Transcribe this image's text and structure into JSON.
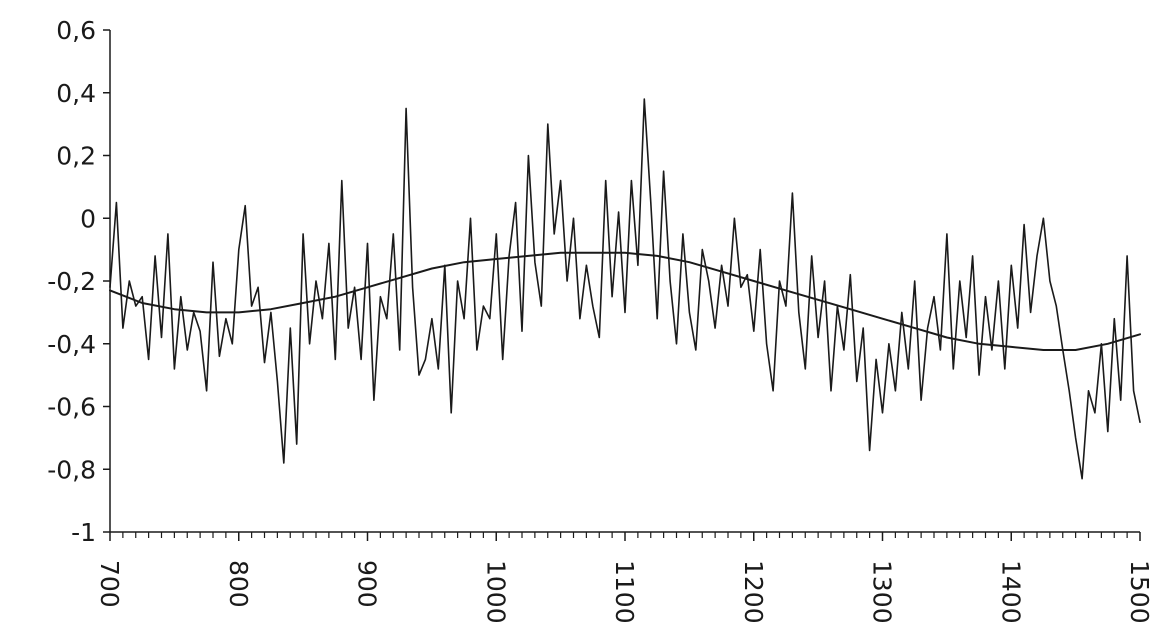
{
  "chart_data": {
    "type": "line",
    "title": "",
    "xlabel": "",
    "ylabel": "",
    "xlim": [
      700,
      1500
    ],
    "ylim": [
      -1,
      0.6
    ],
    "x_ticks": [
      700,
      800,
      900,
      1000,
      1100,
      1200,
      1300,
      1400,
      1500
    ],
    "x_tick_labels": [
      "700",
      "800",
      "900",
      "1000",
      "1100",
      "1200",
      "1300",
      "1400",
      "1500"
    ],
    "y_ticks": [
      0.6,
      0.4,
      0.2,
      0,
      -0.2,
      -0.4,
      -0.6,
      -0.8,
      -1
    ],
    "y_tick_labels": [
      "0,6",
      "0,4",
      "0,2",
      "0",
      "-0,2",
      "-0,4",
      "-0,6",
      "-0,8",
      "-1"
    ],
    "x_minor_tick_step": 10,
    "grid": false,
    "legend": "none",
    "series": [
      {
        "style": "noisy-annual",
        "color": "#1a1a1a",
        "x": [
          700,
          705,
          710,
          715,
          720,
          725,
          730,
          735,
          740,
          745,
          750,
          755,
          760,
          765,
          770,
          775,
          780,
          785,
          790,
          795,
          800,
          805,
          810,
          815,
          820,
          825,
          830,
          835,
          840,
          845,
          850,
          855,
          860,
          865,
          870,
          875,
          880,
          885,
          890,
          895,
          900,
          905,
          910,
          915,
          920,
          925,
          930,
          935,
          940,
          945,
          950,
          955,
          960,
          965,
          970,
          975,
          980,
          985,
          990,
          995,
          1000,
          1005,
          1010,
          1015,
          1020,
          1025,
          1030,
          1035,
          1040,
          1045,
          1050,
          1055,
          1060,
          1065,
          1070,
          1075,
          1080,
          1085,
          1090,
          1095,
          1100,
          1105,
          1110,
          1115,
          1120,
          1125,
          1130,
          1135,
          1140,
          1145,
          1150,
          1155,
          1160,
          1165,
          1170,
          1175,
          1180,
          1185,
          1190,
          1195,
          1200,
          1205,
          1210,
          1215,
          1220,
          1225,
          1230,
          1235,
          1240,
          1245,
          1250,
          1255,
          1260,
          1265,
          1270,
          1275,
          1280,
          1285,
          1290,
          1295,
          1300,
          1305,
          1310,
          1315,
          1320,
          1325,
          1330,
          1335,
          1340,
          1345,
          1350,
          1355,
          1360,
          1365,
          1370,
          1375,
          1380,
          1385,
          1390,
          1395,
          1400,
          1405,
          1410,
          1415,
          1420,
          1425,
          1430,
          1435,
          1440,
          1445,
          1450,
          1455,
          1460,
          1465,
          1470,
          1475,
          1480,
          1485,
          1490,
          1495,
          1500
        ],
        "y": [
          -0.22,
          0.05,
          -0.35,
          -0.2,
          -0.28,
          -0.25,
          -0.45,
          -0.12,
          -0.38,
          -0.05,
          -0.48,
          -0.25,
          -0.42,
          -0.3,
          -0.36,
          -0.55,
          -0.14,
          -0.44,
          -0.32,
          -0.4,
          -0.1,
          0.04,
          -0.28,
          -0.22,
          -0.46,
          -0.3,
          -0.52,
          -0.78,
          -0.35,
          -0.72,
          -0.05,
          -0.4,
          -0.2,
          -0.32,
          -0.08,
          -0.45,
          0.12,
          -0.35,
          -0.22,
          -0.45,
          -0.08,
          -0.58,
          -0.25,
          -0.32,
          -0.05,
          -0.42,
          0.35,
          -0.22,
          -0.5,
          -0.45,
          -0.32,
          -0.48,
          -0.15,
          -0.62,
          -0.2,
          -0.32,
          0.0,
          -0.42,
          -0.28,
          -0.32,
          -0.05,
          -0.45,
          -0.12,
          0.05,
          -0.36,
          0.2,
          -0.14,
          -0.28,
          0.3,
          -0.05,
          0.12,
          -0.2,
          0.0,
          -0.32,
          -0.15,
          -0.28,
          -0.38,
          0.12,
          -0.25,
          0.02,
          -0.3,
          0.12,
          -0.15,
          0.38,
          0.05,
          -0.32,
          0.15,
          -0.2,
          -0.4,
          -0.05,
          -0.3,
          -0.42,
          -0.1,
          -0.2,
          -0.35,
          -0.15,
          -0.28,
          0.0,
          -0.22,
          -0.18,
          -0.36,
          -0.1,
          -0.4,
          -0.55,
          -0.2,
          -0.28,
          0.08,
          -0.3,
          -0.48,
          -0.12,
          -0.38,
          -0.2,
          -0.55,
          -0.28,
          -0.42,
          -0.18,
          -0.52,
          -0.35,
          -0.74,
          -0.45,
          -0.62,
          -0.4,
          -0.55,
          -0.3,
          -0.48,
          -0.2,
          -0.58,
          -0.35,
          -0.25,
          -0.42,
          -0.05,
          -0.48,
          -0.2,
          -0.38,
          -0.12,
          -0.5,
          -0.25,
          -0.42,
          -0.2,
          -0.48,
          -0.15,
          -0.35,
          -0.02,
          -0.3,
          -0.12,
          0.0,
          -0.2,
          -0.28,
          -0.42,
          -0.55,
          -0.7,
          -0.83,
          -0.55,
          -0.62,
          -0.4,
          -0.68,
          -0.32,
          -0.58,
          -0.12,
          -0.55,
          -0.65
        ]
      },
      {
        "style": "smoothed-trend",
        "color": "#1a1a1a",
        "x": [
          700,
          725,
          750,
          775,
          800,
          825,
          850,
          875,
          900,
          925,
          950,
          975,
          1000,
          1025,
          1050,
          1075,
          1100,
          1125,
          1150,
          1175,
          1200,
          1225,
          1250,
          1275,
          1300,
          1325,
          1350,
          1375,
          1400,
          1425,
          1450,
          1475,
          1500
        ],
        "y": [
          -0.23,
          -0.27,
          -0.29,
          -0.3,
          -0.3,
          -0.29,
          -0.27,
          -0.25,
          -0.22,
          -0.19,
          -0.16,
          -0.14,
          -0.13,
          -0.12,
          -0.11,
          -0.11,
          -0.11,
          -0.12,
          -0.14,
          -0.17,
          -0.2,
          -0.23,
          -0.26,
          -0.29,
          -0.32,
          -0.35,
          -0.38,
          -0.4,
          -0.41,
          -0.42,
          -0.42,
          -0.4,
          -0.37
        ]
      }
    ]
  }
}
